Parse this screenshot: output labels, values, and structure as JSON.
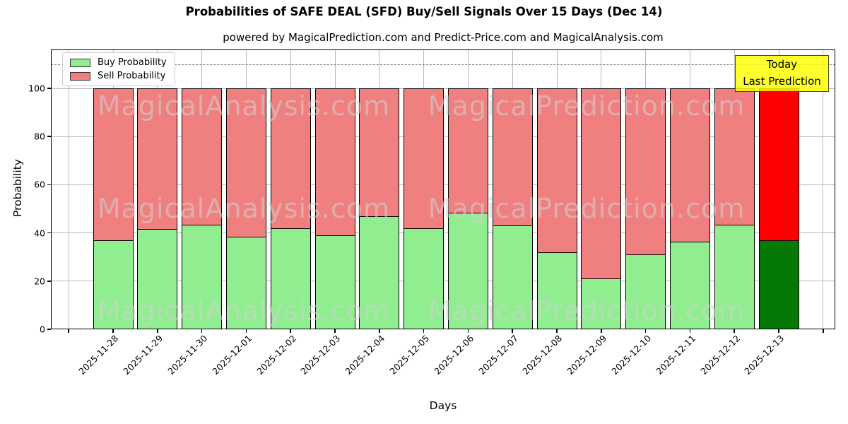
{
  "chart_data": {
    "type": "bar",
    "stacked": true,
    "title": "Probabilities of SAFE DEAL (SFD) Buy/Sell Signals Over 15 Days (Dec 14)",
    "subtitle": "powered by MagicalPrediction.com and Predict-Price.com and MagicalAnalysis.com",
    "xlabel": "Days",
    "ylabel": "Probability",
    "categories": [
      "2025-11-28",
      "2025-11-29",
      "2025-11-30",
      "2025-12-01",
      "2025-12-02",
      "2025-12-03",
      "2025-12-04",
      "2025-12-05",
      "2025-12-06",
      "2025-12-07",
      "2025-12-08",
      "2025-12-09",
      "2025-12-10",
      "2025-12-11",
      "2025-12-12",
      "2025-12-13"
    ],
    "series": [
      {
        "name": "Buy Probability",
        "color": "#90EE90",
        "today_color": "#067806",
        "values": [
          37,
          41.5,
          43.5,
          38.5,
          42,
          39,
          47,
          42,
          48.5,
          43,
          32,
          21,
          31,
          36.5,
          43.5,
          37
        ]
      },
      {
        "name": "Sell Probability",
        "color": "#F08080",
        "today_color": "#FF0000",
        "values": [
          63,
          58.5,
          56.5,
          61.5,
          58,
          61,
          53,
          58,
          51.5,
          57,
          68,
          79,
          69,
          63.5,
          56.5,
          63
        ]
      }
    ],
    "yticks": [
      0,
      20,
      40,
      60,
      80,
      100
    ],
    "ylim": [
      0,
      116
    ],
    "dashed_line_y": 110,
    "grid": true,
    "legend_position": "upper left",
    "annotation": {
      "lines": [
        "Today",
        "Last Prediction"
      ],
      "bg_color": "#FFFF00"
    },
    "watermarks": [
      "MagicalAnalysis.com",
      "MagicalPrediction.com"
    ]
  }
}
